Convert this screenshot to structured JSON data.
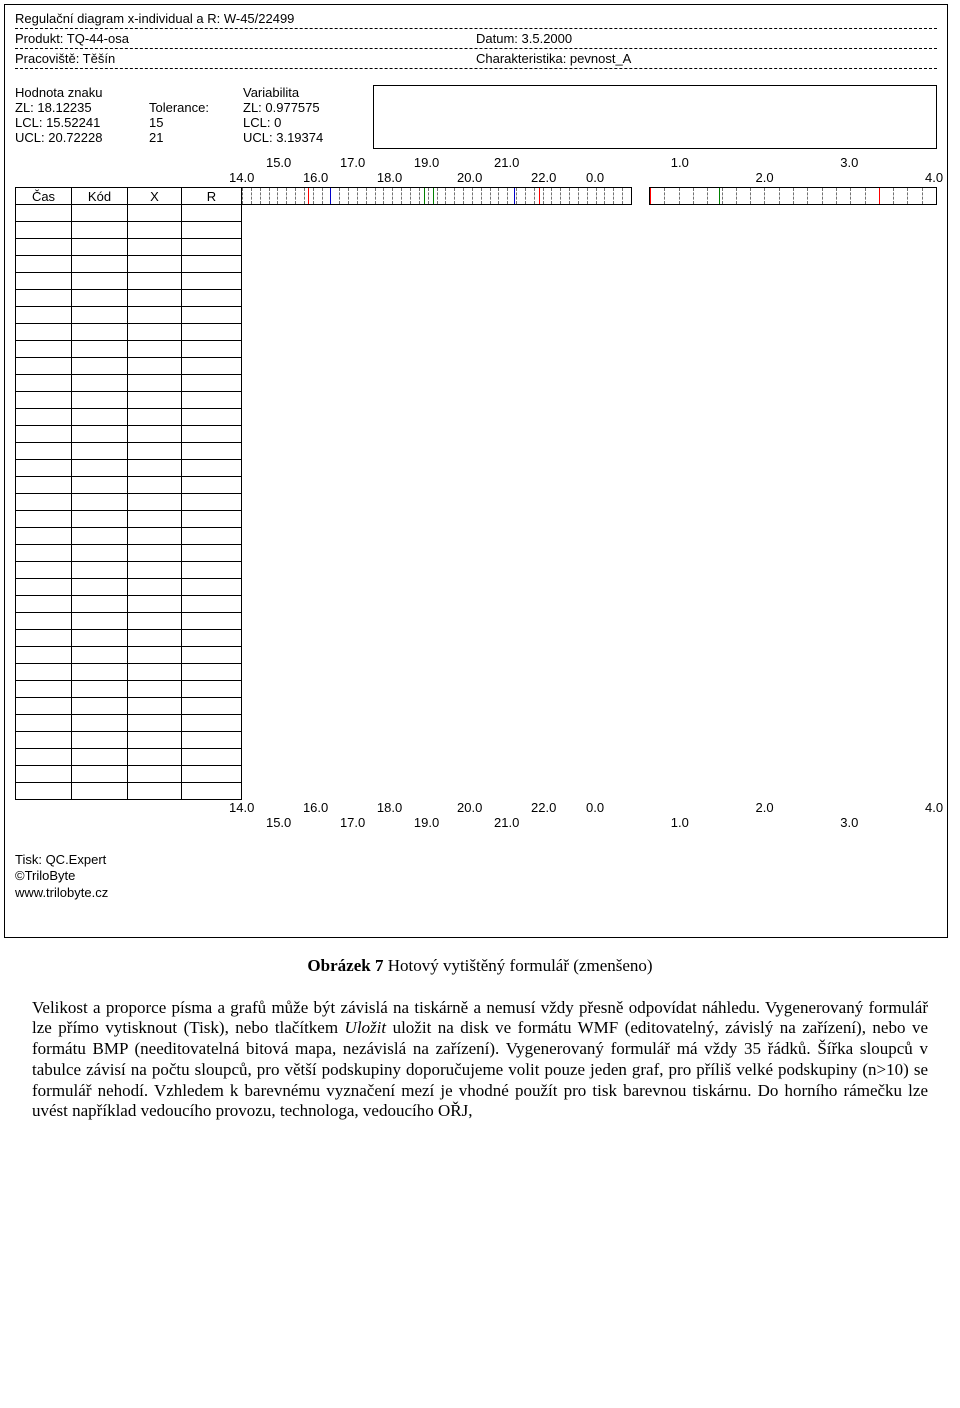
{
  "header": {
    "title": "Regulační diagram x-individual a R: W-45/22499",
    "produkt_label": "Produkt: TQ-44-osa",
    "datum_label": "Datum: 3.5.2000",
    "pracoviste_label": "Pracoviště: Těšín",
    "charakteristika_label": "Charakteristika: pevnost_A"
  },
  "stats": {
    "col1": {
      "l1": "Hodnota znaku",
      "l2": "ZL: 18.12235",
      "l3": "LCL: 15.52241",
      "l4": "UCL: 20.72228"
    },
    "col2": {
      "l1": "",
      "l2": "Tolerance:",
      "l3": "15",
      "l4": "21"
    },
    "col3": {
      "l1": "Variabilita",
      "l2": "ZL: 0.977575",
      "l3": "LCL: 0",
      "l4": "UCL: 3.19374"
    }
  },
  "tableHead": {
    "cas": "Čas",
    "kod": "Kód",
    "x": "X",
    "r": "R"
  },
  "axisX": {
    "ticks_upper": [
      {
        "pos": 6,
        "label": "15.0"
      },
      {
        "pos": 18,
        "label": "17.0"
      },
      {
        "pos": 30,
        "label": "19.0"
      },
      {
        "pos": 43,
        "label": "21.0"
      }
    ],
    "ticks_lower": [
      {
        "pos": 0,
        "label": "14.0"
      },
      {
        "pos": 12,
        "label": "16.0"
      },
      {
        "pos": 24,
        "label": "18.0"
      },
      {
        "pos": 37,
        "label": "20.0"
      },
      {
        "pos": 49,
        "label": "22.0"
      }
    ],
    "grid_minors": [
      0,
      1.25,
      2.5,
      3.75,
      5,
      6.25,
      7.5,
      8.75,
      10,
      11.25,
      12.5,
      13.75,
      15,
      16.25,
      17.5,
      18.75,
      20,
      21.25,
      22.5,
      23.75,
      25,
      26.25,
      27.5,
      28.75,
      30,
      31.25,
      32.5,
      33.75,
      35,
      36.25,
      37.5,
      38.75,
      40,
      41.25,
      42.5,
      43.75,
      45,
      46.25,
      47.5,
      48.75,
      50,
      51.25,
      52.5,
      53.75,
      55
    ],
    "limits": [
      {
        "pos": 9.4,
        "color": "red"
      },
      {
        "pos": 12.5,
        "color": "blue"
      },
      {
        "pos": 25.8,
        "color": "green"
      },
      {
        "pos": 27.0,
        "color": "green"
      },
      {
        "pos": 38.5,
        "color": "blue"
      },
      {
        "pos": 42.0,
        "color": "red"
      }
    ]
  },
  "axisR": {
    "ticks_upper": [
      {
        "pos": 25,
        "label": "1.0"
      },
      {
        "pos": 75,
        "label": "3.0"
      }
    ],
    "ticks_lower": [
      {
        "pos": 0,
        "label": "0.0"
      },
      {
        "pos": 50,
        "label": "2.0"
      },
      {
        "pos": 100,
        "label": "4.0"
      }
    ],
    "grid_minors": [
      0,
      5,
      10,
      15,
      20,
      25,
      30,
      35,
      40,
      45,
      50,
      55,
      60,
      65,
      70,
      75,
      80,
      85,
      90,
      95,
      100
    ],
    "limits": [
      {
        "pos": 0,
        "color": "red"
      },
      {
        "pos": 24,
        "color": "green"
      },
      {
        "pos": 80,
        "color": "red"
      }
    ]
  },
  "rows": 35,
  "footer": {
    "l1": "Tisk: QC.Expert",
    "l2": "©TriloByte",
    "l3": "www.trilobyte.cz"
  },
  "caption_bold": "Obrázek 7",
  "caption_rest": " Hotový vytištěný formulář (zmenšeno)",
  "body": "Velikost a proporce písma a grafů může být závislá na tiskárně a nemusí vždy přesně odpovídat náhledu. Vygenerovaný formulář lze přímo vytisknout (Tisk), nebo tlačítkem <i>Uložit</i> uložit na disk ve formátu WMF (editovatelný, závislý na zařízení), nebo ve formátu BMP (needitovatelná bitová mapa, nezávislá na zařízení). Vygenerovaný formulář má vždy 35 řádků. Šířka sloupců v tabulce závisí na počtu sloupců, pro větší podskupiny doporučujeme volit pouze jeden graf, pro příliš velké podskupiny (n>10) se formulář nehodí. Vzhledem k barevnému vyznačení mezí je vhodné použít pro tisk barevnou tiskárnu. Do horního rámečku lze uvést například vedoucího provozu, technologa, vedoucího OŘJ,"
}
